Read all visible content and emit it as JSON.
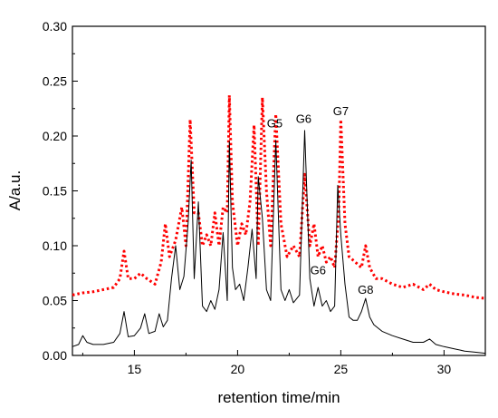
{
  "chart_data": {
    "type": "line",
    "title": "",
    "xlabel": "retention time/min",
    "ylabel": "A/a.u.",
    "xlim": [
      12,
      32
    ],
    "ylim": [
      0.0,
      0.3
    ],
    "x_ticks": [
      "15",
      "20",
      "25",
      "30"
    ],
    "y_ticks": [
      "0.00",
      "0.05",
      "0.10",
      "0.15",
      "0.20",
      "0.25",
      "0.30"
    ],
    "grid": false,
    "legend": "none",
    "annotations": [
      {
        "text": "G5",
        "x": 21.8,
        "y": 0.208
      },
      {
        "text": "G6",
        "x": 23.2,
        "y": 0.212
      },
      {
        "text": "G7",
        "x": 25.0,
        "y": 0.219
      },
      {
        "text": "G6",
        "x": 23.9,
        "y": 0.074
      },
      {
        "text": "G8",
        "x": 26.2,
        "y": 0.056
      }
    ],
    "series": [
      {
        "style": "solid",
        "color": "#000000",
        "x": [
          12.0,
          12.3,
          12.5,
          12.7,
          13.0,
          13.5,
          14.0,
          14.3,
          14.5,
          14.7,
          15.0,
          15.3,
          15.5,
          15.7,
          16.0,
          16.2,
          16.4,
          16.6,
          16.8,
          17.0,
          17.2,
          17.4,
          17.6,
          17.75,
          17.9,
          18.1,
          18.3,
          18.5,
          18.7,
          18.9,
          19.1,
          19.3,
          19.5,
          19.6,
          19.75,
          19.9,
          20.1,
          20.3,
          20.5,
          20.7,
          20.9,
          21.0,
          21.2,
          21.4,
          21.6,
          21.85,
          22.1,
          22.3,
          22.5,
          22.7,
          23.0,
          23.25,
          23.5,
          23.7,
          23.9,
          24.1,
          24.3,
          24.5,
          24.7,
          24.85,
          25.0,
          25.2,
          25.4,
          25.6,
          25.8,
          26.0,
          26.2,
          26.4,
          26.6,
          27.0,
          27.5,
          28.0,
          28.5,
          29.0,
          29.3,
          29.6,
          30.0,
          30.5,
          31.0,
          31.5,
          32.0
        ],
        "y": [
          0.008,
          0.01,
          0.018,
          0.012,
          0.01,
          0.01,
          0.012,
          0.02,
          0.04,
          0.017,
          0.018,
          0.025,
          0.038,
          0.02,
          0.022,
          0.038,
          0.026,
          0.032,
          0.07,
          0.1,
          0.06,
          0.072,
          0.12,
          0.178,
          0.07,
          0.14,
          0.045,
          0.04,
          0.05,
          0.042,
          0.06,
          0.112,
          0.05,
          0.195,
          0.08,
          0.06,
          0.065,
          0.05,
          0.08,
          0.115,
          0.07,
          0.163,
          0.125,
          0.06,
          0.05,
          0.196,
          0.06,
          0.05,
          0.06,
          0.048,
          0.055,
          0.205,
          0.07,
          0.045,
          0.062,
          0.045,
          0.05,
          0.04,
          0.045,
          0.155,
          0.11,
          0.065,
          0.035,
          0.032,
          0.032,
          0.04,
          0.052,
          0.035,
          0.028,
          0.022,
          0.018,
          0.015,
          0.012,
          0.012,
          0.015,
          0.01,
          0.008,
          0.006,
          0.004,
          0.003,
          0.002
        ]
      },
      {
        "style": "dotted",
        "color": "#ff0000",
        "x": [
          12.0,
          12.5,
          13.0,
          13.5,
          14.0,
          14.3,
          14.5,
          14.7,
          15.0,
          15.3,
          15.6,
          16.0,
          16.3,
          16.5,
          16.7,
          17.0,
          17.3,
          17.5,
          17.7,
          17.9,
          18.1,
          18.3,
          18.5,
          18.7,
          18.9,
          19.1,
          19.3,
          19.5,
          19.6,
          19.75,
          20.0,
          20.2,
          20.4,
          20.6,
          20.8,
          21.0,
          21.2,
          21.4,
          21.6,
          21.85,
          22.1,
          22.4,
          22.7,
          23.0,
          23.25,
          23.5,
          23.7,
          23.9,
          24.1,
          24.3,
          24.5,
          24.7,
          24.9,
          25.0,
          25.2,
          25.4,
          25.7,
          26.0,
          26.2,
          26.4,
          26.7,
          27.0,
          27.5,
          28.0,
          28.5,
          29.0,
          29.3,
          29.6,
          30.0,
          30.5,
          31.0,
          31.5,
          32.0
        ],
        "y": [
          0.055,
          0.057,
          0.058,
          0.06,
          0.062,
          0.07,
          0.095,
          0.07,
          0.07,
          0.075,
          0.07,
          0.065,
          0.085,
          0.12,
          0.09,
          0.105,
          0.135,
          0.1,
          0.215,
          0.13,
          0.13,
          0.1,
          0.11,
          0.1,
          0.13,
          0.1,
          0.135,
          0.13,
          0.237,
          0.14,
          0.1,
          0.12,
          0.11,
          0.14,
          0.21,
          0.1,
          0.235,
          0.15,
          0.1,
          0.22,
          0.12,
          0.09,
          0.1,
          0.09,
          0.165,
          0.1,
          0.12,
          0.09,
          0.1,
          0.085,
          0.09,
          0.08,
          0.13,
          0.215,
          0.12,
          0.09,
          0.085,
          0.08,
          0.1,
          0.08,
          0.07,
          0.07,
          0.065,
          0.062,
          0.065,
          0.06,
          0.065,
          0.06,
          0.058,
          0.056,
          0.055,
          0.053,
          0.052
        ]
      }
    ]
  }
}
